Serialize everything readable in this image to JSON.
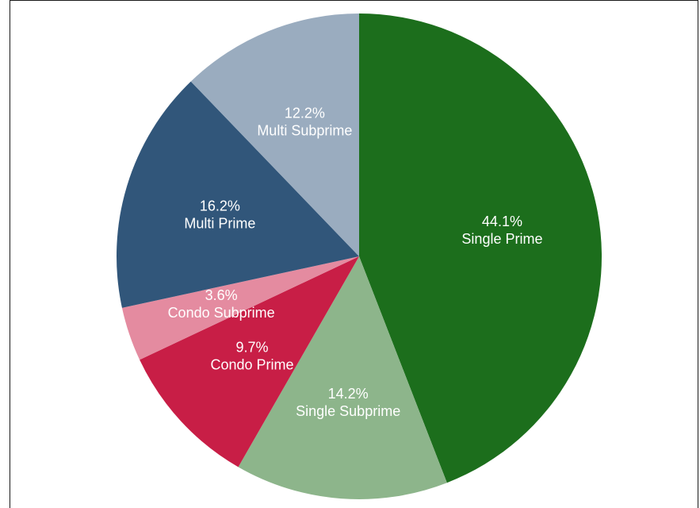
{
  "chart_data": {
    "type": "pie",
    "title": "",
    "start": "12 o'clock",
    "direction": "clockwise",
    "slices": [
      {
        "label": "Single Prime",
        "pct_label": "44.1%",
        "value": 44.1,
        "color": "#1c6e1c"
      },
      {
        "label": "Single Subprime",
        "pct_label": "14.2%",
        "value": 14.2,
        "color": "#8db58b"
      },
      {
        "label": "Condo Prime",
        "pct_label": "9.7%",
        "value": 9.7,
        "color": "#c81e46"
      },
      {
        "label": "Condo Subprime",
        "pct_label": "3.6%",
        "value": 3.6,
        "color": "#e48ba0"
      },
      {
        "label": "Multi Prime",
        "pct_label": "16.2%",
        "value": 16.2,
        "color": "#31567a"
      },
      {
        "label": "Multi Subprime",
        "pct_label": "12.2%",
        "value": 12.2,
        "color": "#9aacbf"
      }
    ]
  }
}
